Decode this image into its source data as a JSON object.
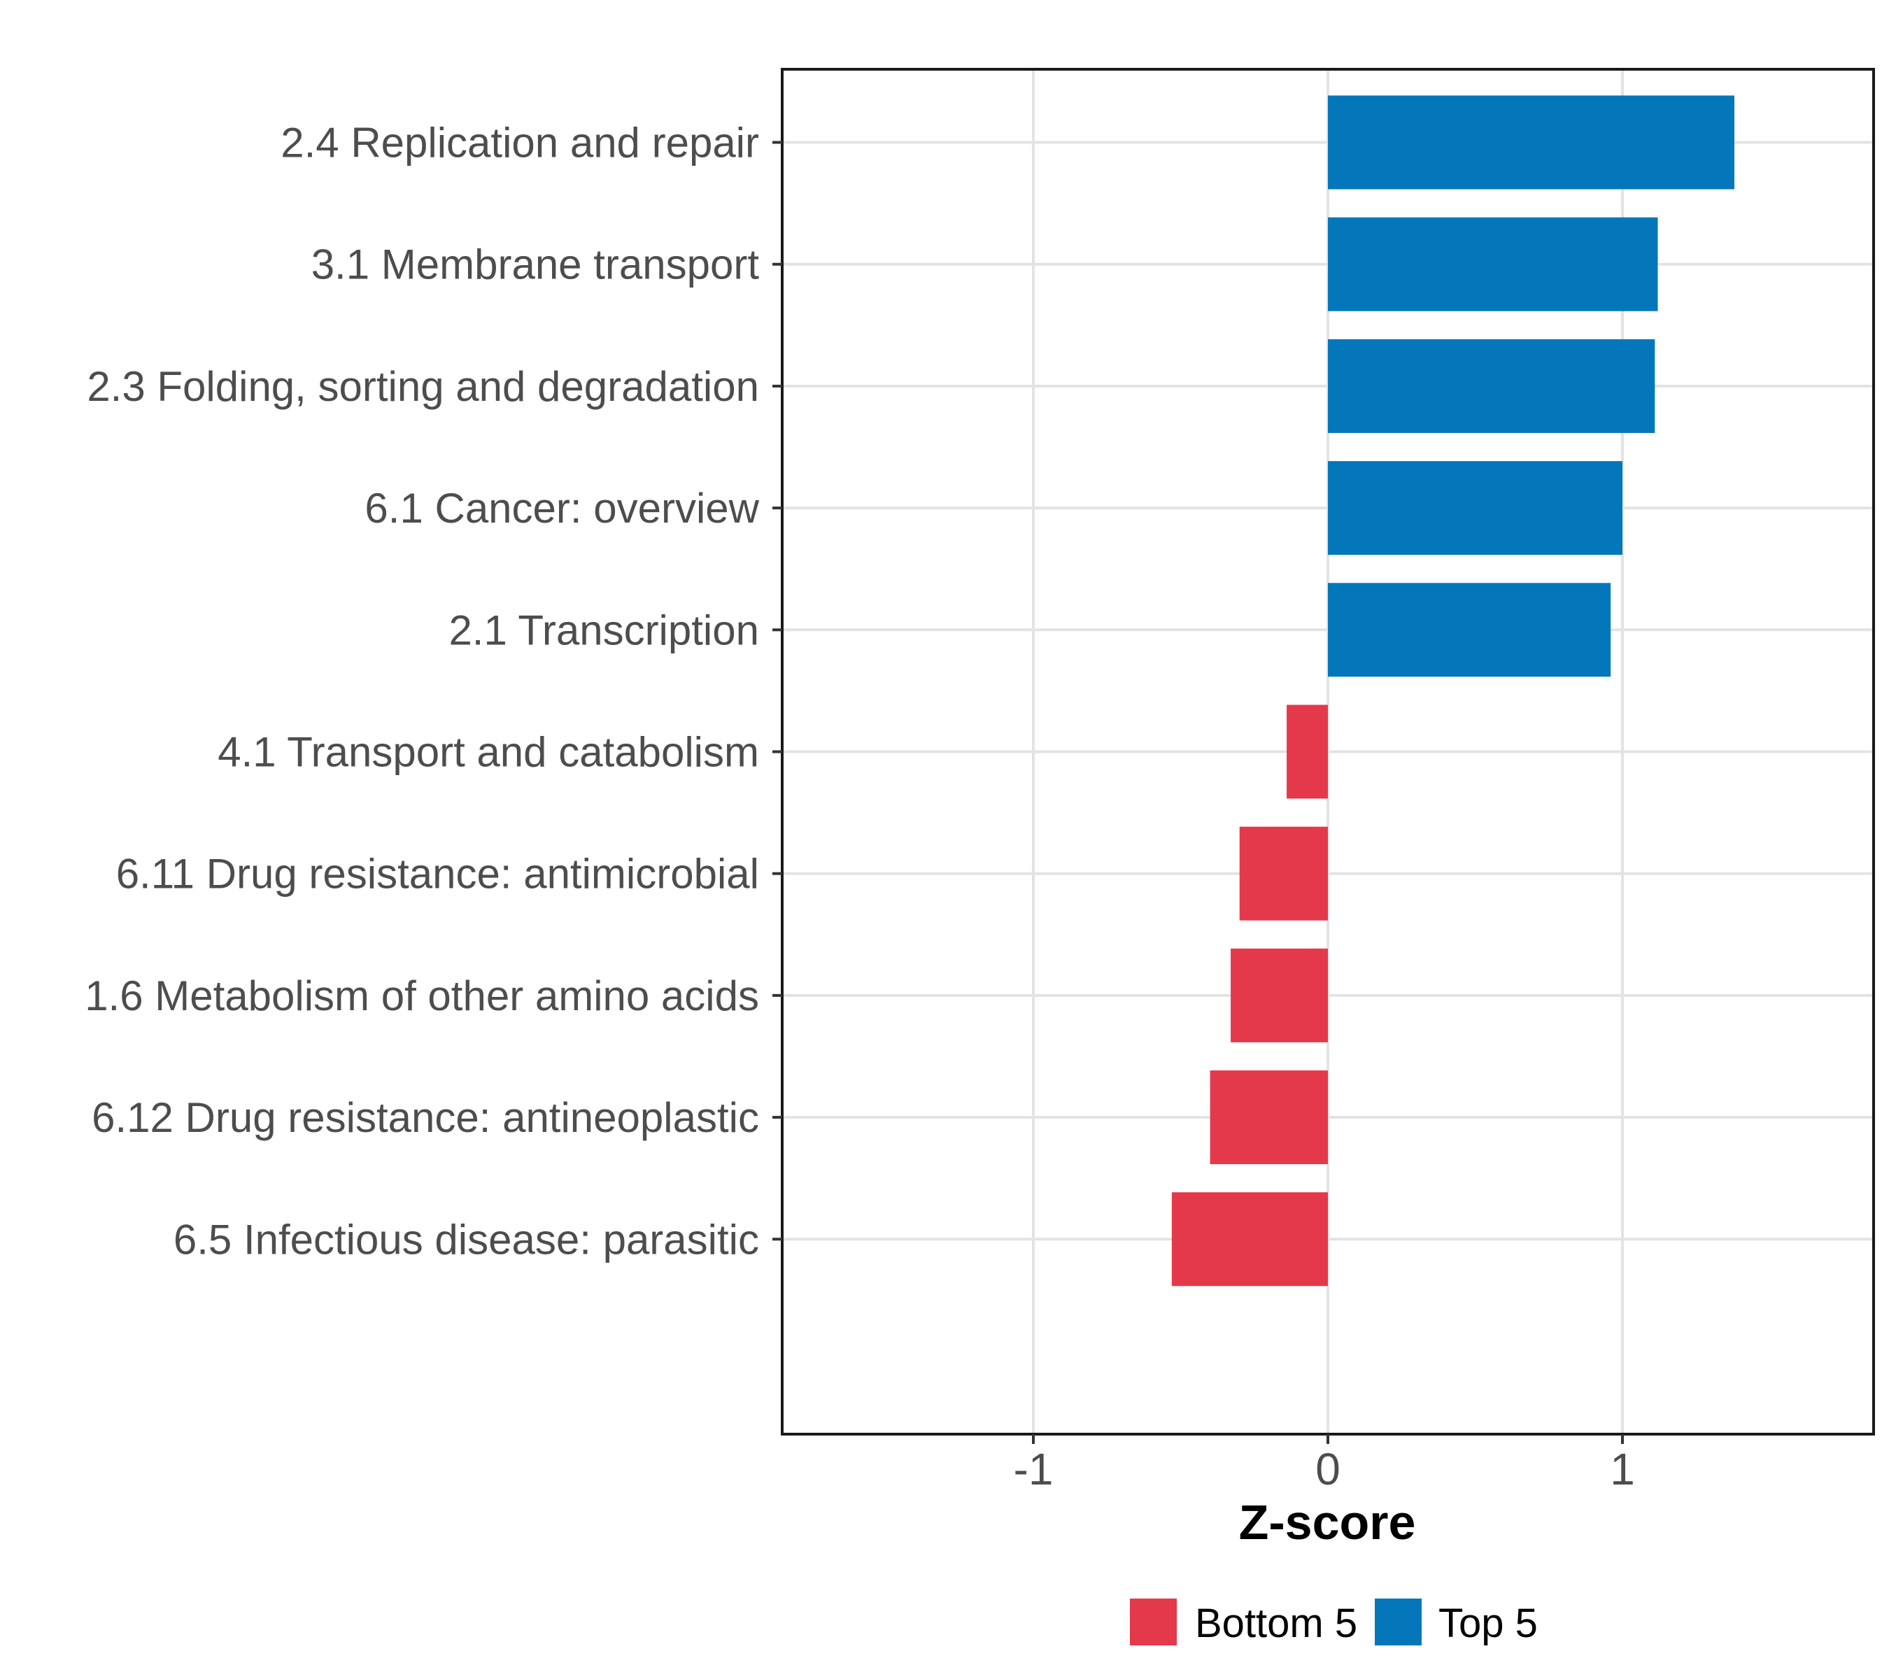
{
  "chart_data": {
    "type": "bar",
    "orientation": "horizontal",
    "title": "",
    "xlabel": "Z-score",
    "ylabel": "",
    "xlim": [
      -1.85,
      1.85
    ],
    "x_ticks": [
      -1,
      0,
      1
    ],
    "grid": true,
    "legend_position": "bottom",
    "colors": {
      "bottom5": "#E4394B",
      "top5": "#0377B9"
    },
    "styles": {
      "grid_color": "#E3E3E3",
      "tick_color": "#333333",
      "border_color": "#1A1A1A",
      "axis_text_color": "#4D4D4D",
      "background": "#FFFFFF"
    },
    "bars": [
      {
        "label": "2.4 Replication and repair",
        "value": 1.38,
        "group": "top5"
      },
      {
        "label": "3.1 Membrane transport",
        "value": 1.12,
        "group": "top5"
      },
      {
        "label": "2.3 Folding, sorting and degradation",
        "value": 1.11,
        "group": "top5"
      },
      {
        "label": "6.1 Cancer: overview",
        "value": 1.0,
        "group": "top5"
      },
      {
        "label": "2.1 Transcription",
        "value": 0.96,
        "group": "top5"
      },
      {
        "label": "4.1 Transport and catabolism",
        "value": -0.14,
        "group": "bottom5"
      },
      {
        "label": "6.11 Drug resistance: antimicrobial",
        "value": -0.3,
        "group": "bottom5"
      },
      {
        "label": "1.6 Metabolism of other amino acids",
        "value": -0.33,
        "group": "bottom5"
      },
      {
        "label": "6.12 Drug resistance: antineoplastic",
        "value": -0.4,
        "group": "bottom5"
      },
      {
        "label": "6.5 Infectious disease: parasitic",
        "value": -0.53,
        "group": "bottom5"
      }
    ],
    "legend": [
      {
        "key": "bottom5",
        "label": "Bottom 5"
      },
      {
        "key": "top5",
        "label": "Top 5"
      }
    ]
  }
}
